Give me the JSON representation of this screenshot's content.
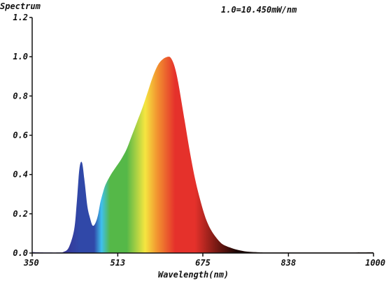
{
  "chart_data": {
    "type": "area",
    "title": "Spectrum",
    "annotation": "1.0=10.450mW/nm",
    "xlabel": "Wavelength(nm)",
    "ylabel": "",
    "xlim": [
      350,
      1000
    ],
    "ylim": [
      0,
      1.2
    ],
    "grid": false,
    "x_ticks": [
      350,
      513,
      675,
      838,
      1000
    ],
    "x_tick_labels": [
      "350",
      "513",
      "675",
      "838",
      "1000"
    ],
    "y_ticks": [
      0,
      0.2,
      0.4,
      0.6,
      0.8,
      1.0,
      1.2
    ],
    "y_tick_labels": [
      "0.0",
      "0.2",
      "0.4",
      "0.6",
      "0.8",
      "1.0",
      "1.2"
    ],
    "x": [
      350,
      360,
      380,
      400,
      410,
      420,
      430,
      435,
      440,
      445,
      450,
      455,
      460,
      465,
      470,
      475,
      480,
      485,
      490,
      500,
      510,
      520,
      530,
      540,
      550,
      560,
      570,
      580,
      590,
      600,
      610,
      615,
      620,
      625,
      630,
      640,
      650,
      660,
      670,
      680,
      690,
      700,
      710,
      720,
      730,
      740,
      750,
      760,
      780,
      800,
      850,
      900,
      950,
      1000
    ],
    "values": [
      0.005,
      0.004,
      0.003,
      0.003,
      0.006,
      0.03,
      0.12,
      0.26,
      0.43,
      0.46,
      0.36,
      0.24,
      0.18,
      0.14,
      0.15,
      0.19,
      0.26,
      0.31,
      0.35,
      0.4,
      0.44,
      0.48,
      0.53,
      0.6,
      0.67,
      0.74,
      0.82,
      0.9,
      0.96,
      0.99,
      1.0,
      0.99,
      0.96,
      0.91,
      0.84,
      0.68,
      0.52,
      0.38,
      0.27,
      0.18,
      0.12,
      0.08,
      0.05,
      0.035,
      0.025,
      0.017,
      0.011,
      0.007,
      0.004,
      0.003,
      0.003,
      0.003,
      0.003,
      0.004
    ],
    "colors": {
      "axis": "#111111",
      "violet": "#3b2f8f",
      "blue": "#3048a8",
      "cyan": "#3fc0ee",
      "green": "#55b848",
      "yellow": "#f5e640",
      "orange": "#f29430",
      "red": "#e5312b",
      "dark_red": "#7a1a14",
      "near_ir": "#1a0503"
    }
  }
}
